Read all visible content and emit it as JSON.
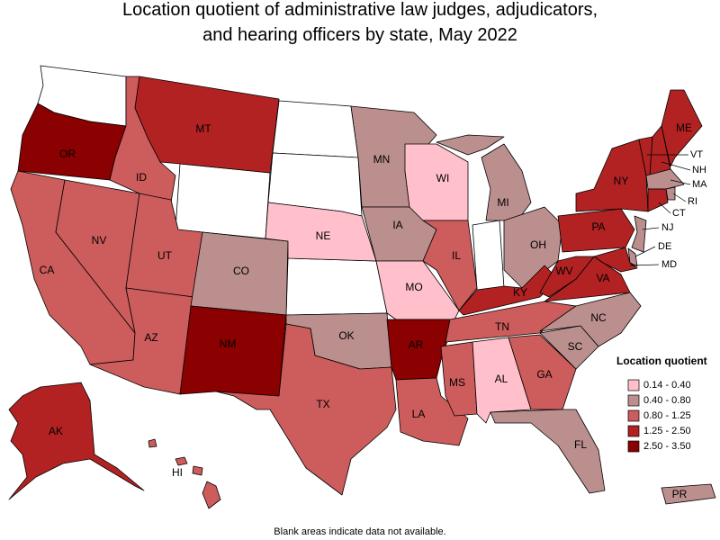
{
  "title_lines": [
    "Location quotient of administrative law judges, adjudicators,",
    "and hearing officers by state, May 2022"
  ],
  "footnote": "Blank areas indicate data not available.",
  "legend": {
    "title": "Location quotient",
    "items": [
      {
        "label": "0.14 - 0.40",
        "color": "#ffc0cb"
      },
      {
        "label": "0.40 - 0.80",
        "color": "#bc8f8f"
      },
      {
        "label": "0.80 - 1.25",
        "color": "#cd5c5c"
      },
      {
        "label": "1.25 - 2.50",
        "color": "#b22222"
      },
      {
        "label": "2.50 - 3.50",
        "color": "#8b0000"
      }
    ]
  },
  "states": [
    {
      "label": "OR",
      "color": "#8b0000"
    },
    {
      "label": "CA",
      "color": "#cd5c5c"
    },
    {
      "label": "NV",
      "color": "#cd5c5c"
    },
    {
      "label": "ID",
      "color": "#cd5c5c"
    },
    {
      "label": "MT",
      "color": "#b22222"
    },
    {
      "label": "UT",
      "color": "#cd5c5c"
    },
    {
      "label": "AZ",
      "color": "#cd5c5c"
    },
    {
      "label": "CO",
      "color": "#bc8f8f"
    },
    {
      "label": "NM",
      "color": "#8b0000"
    },
    {
      "label": "NE",
      "color": "#ffc0cb"
    },
    {
      "label": "OK",
      "color": "#bc8f8f"
    },
    {
      "label": "TX",
      "color": "#cd5c5c"
    },
    {
      "label": "MN",
      "color": "#bc8f8f"
    },
    {
      "label": "IA",
      "color": "#bc8f8f"
    },
    {
      "label": "MO",
      "color": "#ffc0cb"
    },
    {
      "label": "AR",
      "color": "#8b0000"
    },
    {
      "label": "LA",
      "color": "#cd5c5c"
    },
    {
      "label": "WI",
      "color": "#ffc0cb"
    },
    {
      "label": "IL",
      "color": "#cd5c5c"
    },
    {
      "label": "MI",
      "color": "#bc8f8f"
    },
    {
      "label": "OH",
      "color": "#bc8f8f"
    },
    {
      "label": "KY",
      "color": "#b22222"
    },
    {
      "label": "TN",
      "color": "#cd5c5c"
    },
    {
      "label": "MS",
      "color": "#cd5c5c"
    },
    {
      "label": "AL",
      "color": "#ffc0cb"
    },
    {
      "label": "GA",
      "color": "#cd5c5c"
    },
    {
      "label": "FL",
      "color": "#bc8f8f"
    },
    {
      "label": "SC",
      "color": "#bc8f8f"
    },
    {
      "label": "NC",
      "color": "#bc8f8f"
    },
    {
      "label": "VA",
      "color": "#b22222"
    },
    {
      "label": "WV",
      "color": "#b22222"
    },
    {
      "label": "PA",
      "color": "#b22222"
    },
    {
      "label": "NY",
      "color": "#b22222"
    },
    {
      "label": "ME",
      "color": "#b22222"
    },
    {
      "label": "VT",
      "color": "#b22222"
    },
    {
      "label": "NH",
      "color": "#b22222"
    },
    {
      "label": "MA",
      "color": "#bc8f8f"
    },
    {
      "label": "RI",
      "color": "#bc8f8f"
    },
    {
      "label": "CT",
      "color": "#b22222"
    },
    {
      "label": "NJ",
      "color": "#bc8f8f"
    },
    {
      "label": "DE",
      "color": "#bc8f8f"
    },
    {
      "label": "MD",
      "color": "#b22222"
    },
    {
      "label": "AK",
      "color": "#b22222"
    },
    {
      "label": "HI",
      "color": "#cd5c5c"
    },
    {
      "label": "PR",
      "color": "#bc8f8f"
    }
  ]
}
